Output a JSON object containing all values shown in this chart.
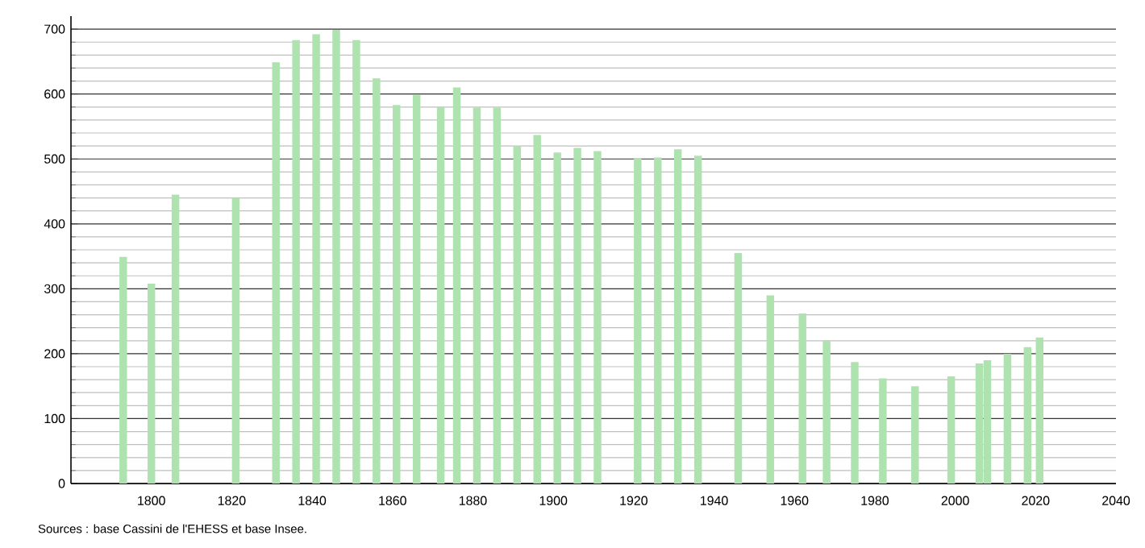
{
  "chart_data": {
    "type": "bar",
    "color": "#aee3b0",
    "x": [
      1793,
      1800,
      1806,
      1821,
      1831,
      1836,
      1841,
      1846,
      1851,
      1856,
      1861,
      1866,
      1872,
      1876,
      1881,
      1886,
      1891,
      1896,
      1901,
      1906,
      1911,
      1921,
      1926,
      1931,
      1936,
      1946,
      1954,
      1962,
      1968,
      1975,
      1982,
      1990,
      1999,
      2006,
      2008,
      2013,
      2018,
      2021
    ],
    "values": [
      349,
      308,
      445,
      440,
      649,
      683,
      692,
      699,
      683,
      624,
      583,
      599,
      580,
      610,
      579,
      579,
      520,
      537,
      510,
      517,
      512,
      501,
      502,
      515,
      505,
      355,
      290,
      262,
      220,
      187,
      162,
      150,
      165,
      185,
      190,
      200,
      210,
      225
    ],
    "xlim": [
      1780,
      2040
    ],
    "ylim": [
      0,
      720
    ],
    "xticks": [
      1800,
      1820,
      1840,
      1860,
      1880,
      1900,
      1920,
      1940,
      1960,
      1980,
      2000,
      2020,
      2040
    ],
    "yticks": [
      0,
      100,
      200,
      300,
      400,
      500,
      600,
      700
    ],
    "grid": "y",
    "annotations": [
      "Sources : base Cassini de l'EHESS et base Insee."
    ]
  }
}
